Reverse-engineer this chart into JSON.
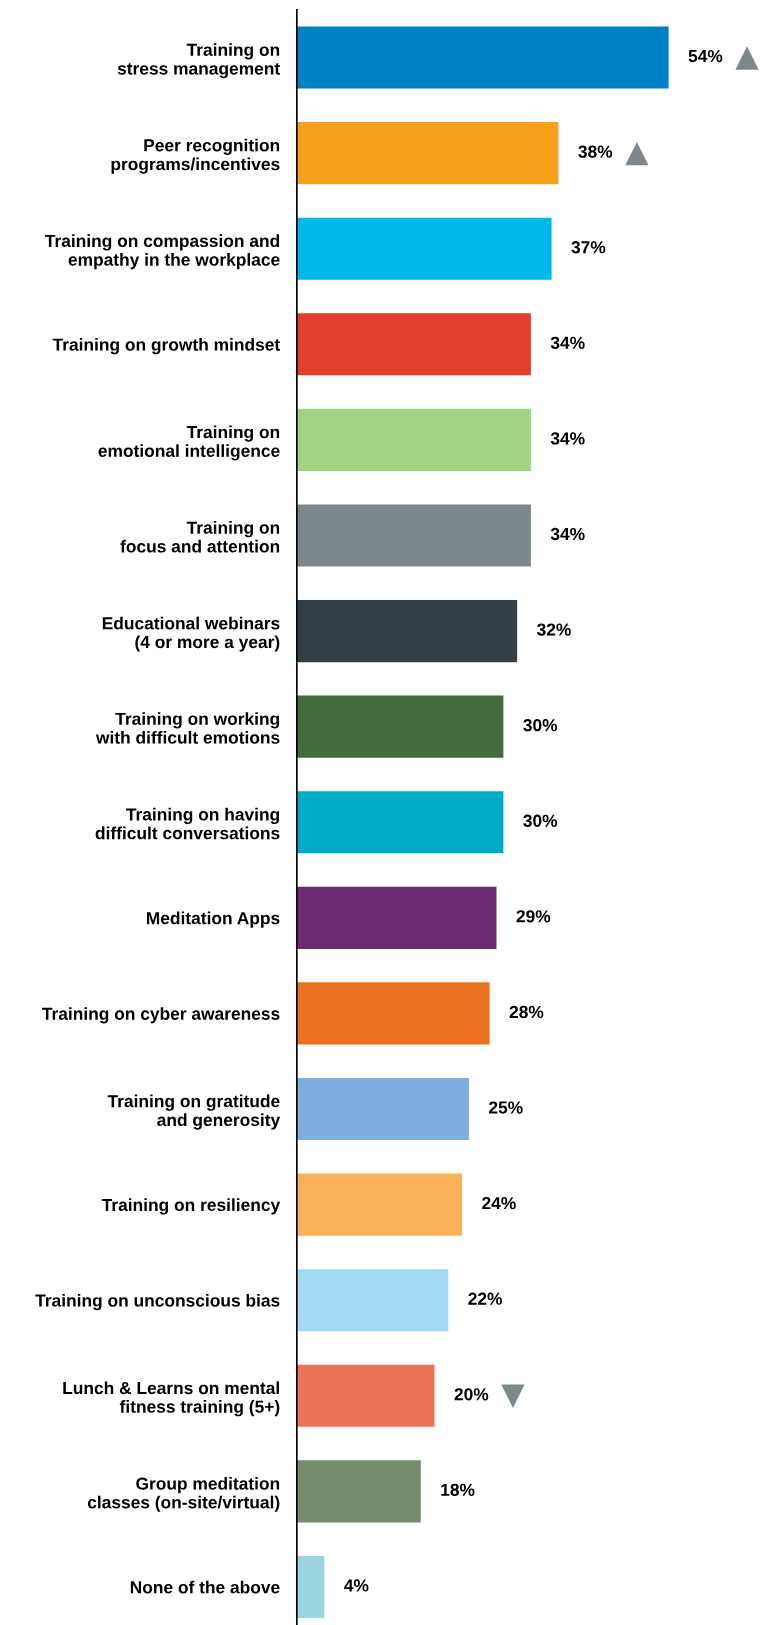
{
  "chart_data": {
    "type": "bar",
    "orientation": "horizontal",
    "tick_labels": "y",
    "grid": false,
    "legend": false,
    "categories": [
      "Training on\nstress management",
      "Peer recognition\nprograms/incentives",
      "Training on compassion and\nempathy in the workplace",
      "Training on growth mindset",
      "Training on\nemotional intelligence",
      "Training on\nfocus and attention",
      "Educational webinars\n(4 or more a year)",
      "Training on working\nwith difficult emotions",
      "Training on having\ndifficult conversations",
      "Meditation Apps",
      "Training on cyber awareness",
      "Training on gratitude\nand generosity",
      "Training on resiliency",
      "Training on unconscious bias",
      "Lunch & Learns on mental\nfitness training (5+)",
      "Group meditation\nclasses (on-site/virtual)",
      "None of the above"
    ],
    "values": [
      54,
      38,
      37,
      34,
      34,
      34,
      32,
      30,
      30,
      29,
      28,
      25,
      24,
      22,
      20,
      18,
      4
    ],
    "value_labels": [
      "54%",
      "38%",
      "37%",
      "34%",
      "34%",
      "34%",
      "32%",
      "30%",
      "30%",
      "29%",
      "28%",
      "25%",
      "24%",
      "22%",
      "20%",
      "18%",
      "4%"
    ],
    "annotations": [
      {
        "text": "▲",
        "x": 54,
        "y": "Training on\nstress management"
      },
      {
        "text": "▲",
        "x": 38,
        "y": "Peer recognition\nprograms/incentives"
      },
      {
        "text": "▼",
        "x": 20,
        "y": "Lunch & Learns on mental\nfitness training (5+)"
      }
    ],
    "colors": [
      "#0080c6",
      "#f7a01e",
      "#00b9eb",
      "#e33f31",
      "#a2d283",
      "#7d888d",
      "#323e48",
      "#426a3c",
      "#00abc8",
      "#6e2973",
      "#ec7021",
      "#7daedf",
      "#f9b258",
      "#a2d9f4",
      "#ea7257",
      "#778c6e",
      "#99d6e2"
    ]
  }
}
